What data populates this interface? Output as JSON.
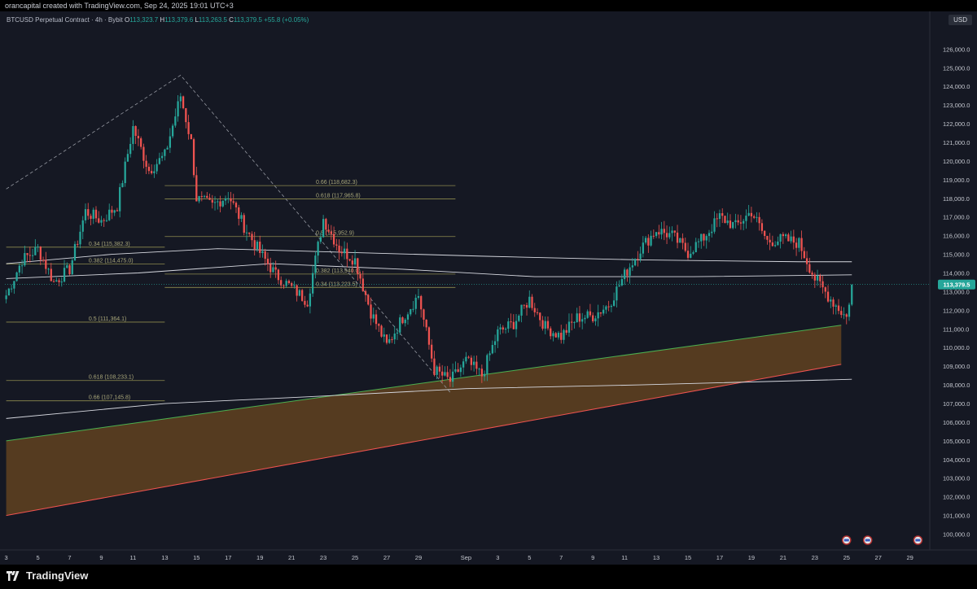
{
  "header": {
    "attribution": "orancapital created with TradingView.com, Sep 24, 2025 19:01 UTC+3"
  },
  "legend": {
    "symbol": "BTCUSD Perpetual Contract · 4h · Bybit",
    "open_label": "O",
    "open": "113,323.7",
    "high_label": "H",
    "high": "113,379.6",
    "low_label": "L",
    "low": "113,263.5",
    "close_label": "C",
    "close": "113,379.5",
    "change": "+55.8 (+0.05%)"
  },
  "currency_label": "USD",
  "footer": {
    "brand": "TradingView",
    "brand_icon": "tradingview-logo-icon"
  },
  "colors": {
    "background": "#151823",
    "candle_up": "#26a69a",
    "candle_down": "#ef5350",
    "fib": "#8d8a4e",
    "band_fill": "#8a5a1f",
    "band_upper": "#ef5350",
    "band_lower": "#4caf50",
    "ma": "#d7d9e0"
  },
  "chart_data": {
    "type": "candlestick",
    "timeframe": "4h",
    "y_range": [
      99500,
      126800
    ],
    "y_ticks": [
      126000,
      125000,
      124000,
      123000,
      122000,
      121000,
      120000,
      119000,
      118000,
      117000,
      116000,
      115000,
      114000,
      113000,
      112000,
      111000,
      110000,
      109000,
      108000,
      107000,
      106000,
      105000,
      104000,
      103000,
      102000,
      101000,
      100000
    ],
    "x_ticks": [
      {
        "label": "3",
        "i": 0
      },
      {
        "label": "5",
        "i": 12
      },
      {
        "label": "7",
        "i": 24
      },
      {
        "label": "9",
        "i": 36
      },
      {
        "label": "11",
        "i": 48
      },
      {
        "label": "13",
        "i": 60
      },
      {
        "label": "15",
        "i": 72
      },
      {
        "label": "17",
        "i": 84
      },
      {
        "label": "19",
        "i": 96
      },
      {
        "label": "21",
        "i": 108
      },
      {
        "label": "23",
        "i": 120
      },
      {
        "label": "25",
        "i": 132
      },
      {
        "label": "27",
        "i": 144
      },
      {
        "label": "29",
        "i": 156
      },
      {
        "label": "Sep",
        "i": 174
      },
      {
        "label": "3",
        "i": 186
      },
      {
        "label": "5",
        "i": 198
      },
      {
        "label": "7",
        "i": 210
      },
      {
        "label": "9",
        "i": 222
      },
      {
        "label": "11",
        "i": 234
      },
      {
        "label": "13",
        "i": 246
      },
      {
        "label": "15",
        "i": 258
      },
      {
        "label": "17",
        "i": 270
      },
      {
        "label": "19",
        "i": 282
      },
      {
        "label": "21",
        "i": 294
      },
      {
        "label": "23",
        "i": 306
      },
      {
        "label": "25",
        "i": 318
      },
      {
        "label": "27",
        "i": 330
      },
      {
        "label": "29",
        "i": 342
      }
    ],
    "x_slots": 350,
    "last_price": 113379.5,
    "last_price_label": "113,379.5",
    "key_points": [
      [
        0,
        112800
      ],
      [
        6,
        114700
      ],
      [
        12,
        115300
      ],
      [
        18,
        113500
      ],
      [
        24,
        114200
      ],
      [
        30,
        117300
      ],
      [
        36,
        116800
      ],
      [
        42,
        117600
      ],
      [
        48,
        121800
      ],
      [
        54,
        119500
      ],
      [
        60,
        120300
      ],
      [
        66,
        123500
      ],
      [
        70,
        121000
      ],
      [
        72,
        118000
      ],
      [
        78,
        117600
      ],
      [
        84,
        118200
      ],
      [
        90,
        116500
      ],
      [
        96,
        115100
      ],
      [
        102,
        113900
      ],
      [
        108,
        113200
      ],
      [
        114,
        112500
      ],
      [
        120,
        116900
      ],
      [
        126,
        115300
      ],
      [
        132,
        114700
      ],
      [
        138,
        111900
      ],
      [
        144,
        110100
      ],
      [
        150,
        111600
      ],
      [
        156,
        112800
      ],
      [
        162,
        108800
      ],
      [
        168,
        108200
      ],
      [
        174,
        109300
      ],
      [
        180,
        108500
      ],
      [
        186,
        110800
      ],
      [
        192,
        111300
      ],
      [
        198,
        112600
      ],
      [
        204,
        111100
      ],
      [
        210,
        110600
      ],
      [
        216,
        111600
      ],
      [
        222,
        111700
      ],
      [
        228,
        112300
      ],
      [
        234,
        113900
      ],
      [
        240,
        115300
      ],
      [
        246,
        116300
      ],
      [
        252,
        116000
      ],
      [
        258,
        115100
      ],
      [
        264,
        115900
      ],
      [
        270,
        117000
      ],
      [
        276,
        116500
      ],
      [
        282,
        117300
      ],
      [
        288,
        115700
      ],
      [
        294,
        115800
      ],
      [
        300,
        115600
      ],
      [
        306,
        113700
      ],
      [
        312,
        112600
      ],
      [
        318,
        111600
      ],
      [
        320,
        113400
      ]
    ],
    "fib_levels": [
      {
        "label": "0.66 (118,682.3)",
        "price": 118682.3
      },
      {
        "label": "0.618 (117,965.8)",
        "price": 117965.8
      },
      {
        "label": "0.5 (115,952.9)",
        "price": 115952.9
      },
      {
        "label": "0.34 (115,382.3)",
        "price": 115382.3
      },
      {
        "label": "0.382 (114,475.0)",
        "price": 114475.0
      },
      {
        "label": "0.382 (113,940.0)",
        "price": 113940.0
      },
      {
        "label": "0.34 (113,223.5)",
        "price": 113223.5
      },
      {
        "label": "0.5 (111,364.1)",
        "price": 111364.1
      },
      {
        "label": "0.618 (108,233.1)",
        "price": 108233.1
      },
      {
        "label": "0.66 (107,145.8)",
        "price": 107145.8
      }
    ],
    "band": {
      "upper_start": [
        0,
        105000
      ],
      "upper_end": [
        316,
        111200
      ],
      "lower_start": [
        0,
        101000
      ],
      "lower_end": [
        316,
        109100
      ]
    },
    "moving_averages": [
      {
        "points": [
          [
            0,
            106200
          ],
          [
            60,
            107000
          ],
          [
            120,
            107400
          ],
          [
            174,
            107800
          ],
          [
            240,
            108000
          ],
          [
            320,
            108300
          ]
        ]
      },
      {
        "points": [
          [
            0,
            114500
          ],
          [
            40,
            115000
          ],
          [
            80,
            115300
          ],
          [
            130,
            115100
          ],
          [
            180,
            114900
          ],
          [
            240,
            114700
          ],
          [
            300,
            114600
          ],
          [
            320,
            114600
          ]
        ]
      },
      {
        "points": [
          [
            0,
            113700
          ],
          [
            50,
            114000
          ],
          [
            100,
            114500
          ],
          [
            150,
            114200
          ],
          [
            200,
            113800
          ],
          [
            260,
            113800
          ],
          [
            320,
            113900
          ]
        ]
      }
    ],
    "calendar_markers": [
      "event-flag-icon",
      "event-flag-icon",
      "event-flag-icon"
    ]
  }
}
